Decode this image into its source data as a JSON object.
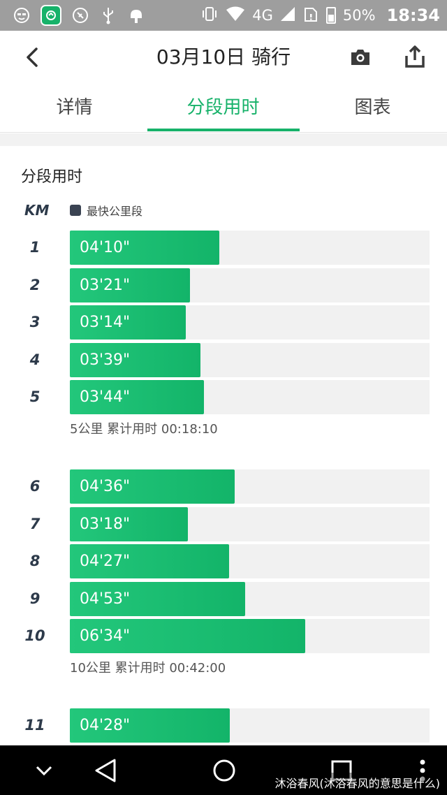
{
  "status_bar": {
    "network": "4G",
    "battery": "50%",
    "time": "18:34"
  },
  "header": {
    "title": "03月10日 骑行"
  },
  "tabs": [
    {
      "label": "详情",
      "active": false
    },
    {
      "label": "分段用时",
      "active": true
    },
    {
      "label": "图表",
      "active": false
    }
  ],
  "section": {
    "title": "分段用时",
    "km_header": "KM",
    "legend": "最快公里段"
  },
  "splits": [
    {
      "km": "1",
      "time": "04'10\"",
      "seconds": 250
    },
    {
      "km": "2",
      "time": "03'21\"",
      "seconds": 201
    },
    {
      "km": "3",
      "time": "03'14\"",
      "seconds": 194
    },
    {
      "km": "4",
      "time": "03'39\"",
      "seconds": 219
    },
    {
      "km": "5",
      "time": "03'44\"",
      "seconds": 224
    },
    {
      "km": "6",
      "time": "04'36\"",
      "seconds": 276
    },
    {
      "km": "7",
      "time": "03'18\"",
      "seconds": 198
    },
    {
      "km": "8",
      "time": "04'27\"",
      "seconds": 267
    },
    {
      "km": "9",
      "time": "04'53\"",
      "seconds": 293
    },
    {
      "km": "10",
      "time": "06'34\"",
      "seconds": 394
    },
    {
      "km": "11",
      "time": "04'28\"",
      "seconds": 268
    }
  ],
  "cumulative": [
    "5公里 累计用时 00:18:10",
    "10公里 累计用时 00:42:00"
  ],
  "watermark": "沐浴春风(沐浴春风的意思是什么)",
  "colors": {
    "accent": "#17b26a",
    "track": "#f1f1f1",
    "status_bar": "#9e9e9e"
  }
}
